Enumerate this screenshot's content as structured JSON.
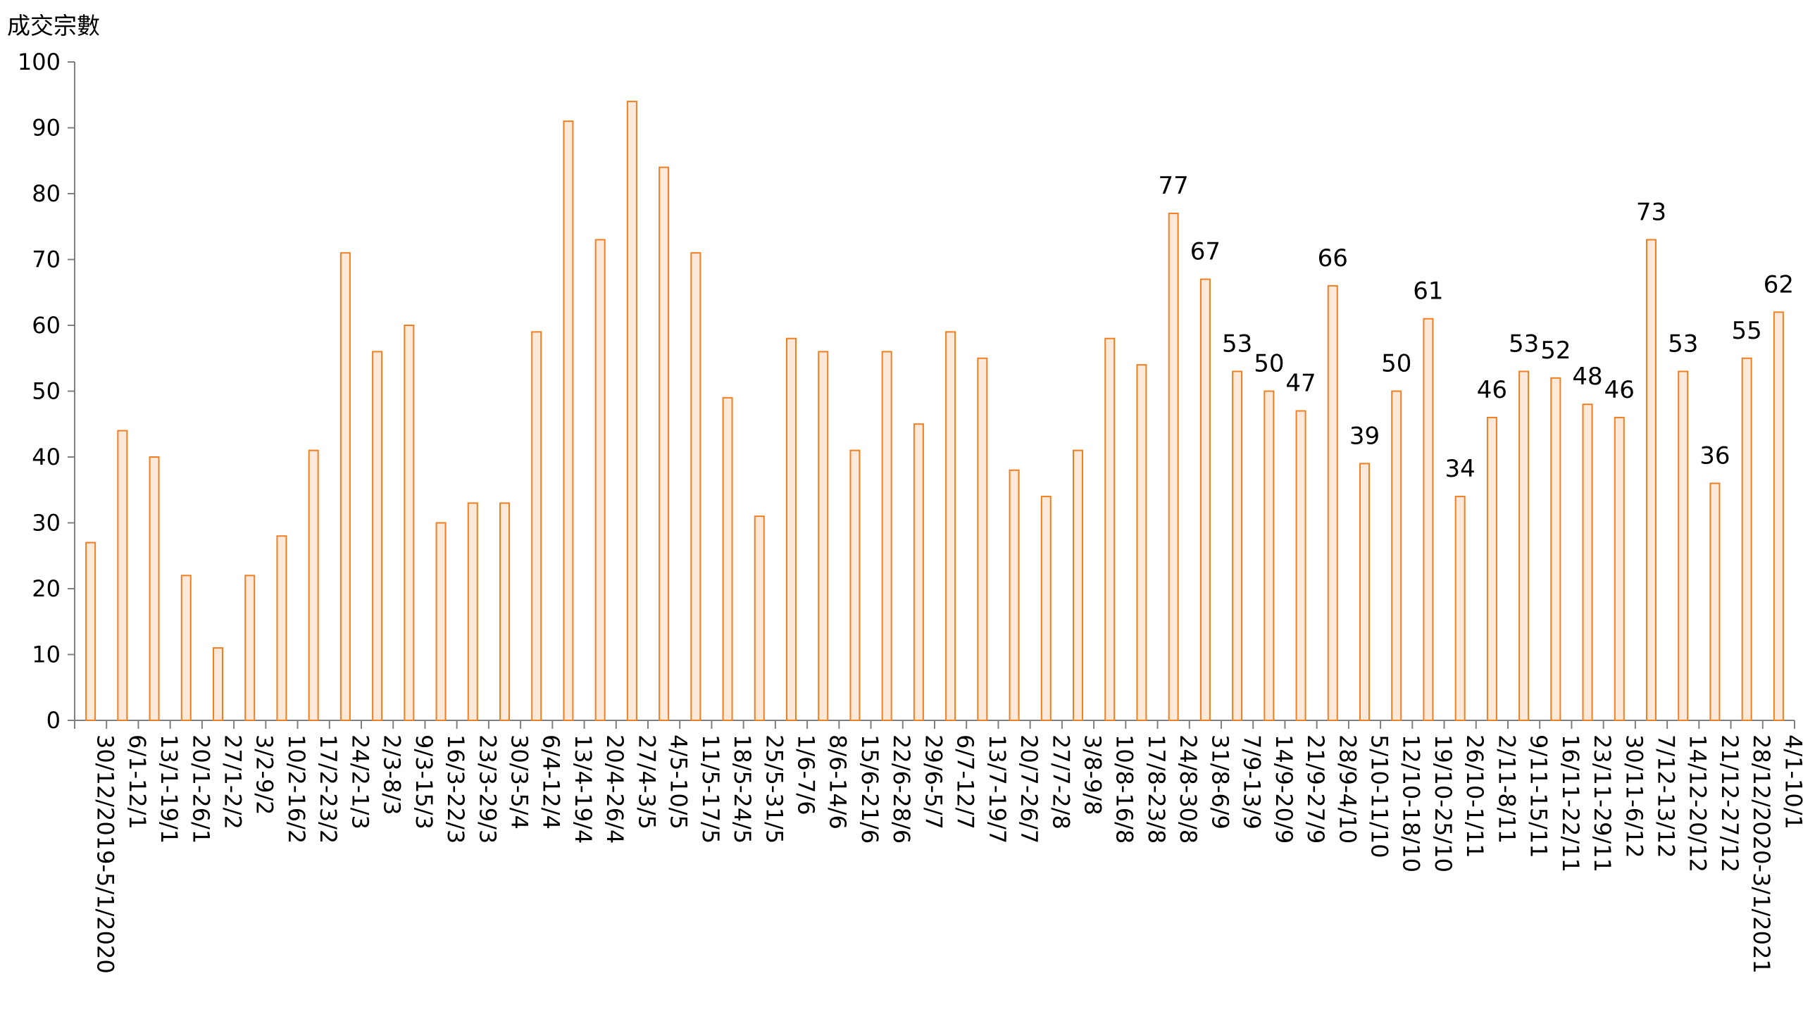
{
  "chart_data": {
    "type": "bar",
    "ylabel": "成交宗數",
    "xlabel": "",
    "title": "",
    "ylim": [
      0,
      100
    ],
    "yticks": [
      0,
      10,
      20,
      30,
      40,
      50,
      60,
      70,
      80,
      90,
      100
    ],
    "grid": false,
    "bar_fill": "#fde9d9",
    "bar_stroke": "#f07f22",
    "categories": [
      "30/12/2019-5/1/2020",
      "6/1-12/1",
      "13/1-19/1",
      "20/1-26/1",
      "27/1-2/2",
      "3/2-9/2",
      "10/2-16/2",
      "17/2-23/2",
      "24/2-1/3",
      "2/3-8/3",
      "9/3-15/3",
      "16/3-22/3",
      "23/3-29/3",
      "30/3-5/4",
      "6/4-12/4",
      "13/4-19/4",
      "20/4-26/4",
      "27/4-3/5",
      "4/5-10/5",
      "11/5-17/5",
      "18/5-24/5",
      "25/5-31/5",
      "1/6-7/6",
      "8/6-14/6",
      "15/6-21/6",
      "22/6-28/6",
      "29/6-5/7",
      "6/7-12/7",
      "13/7-19/7",
      "20/7-26/7",
      "27/7-2/8",
      "3/8-9/8",
      "10/8-16/8",
      "17/8-23/8",
      "24/8-30/8",
      "31/8-6/9",
      "7/9-13/9",
      "14/9-20/9",
      "21/9-27/9",
      "28/9-4/10",
      "5/10-11/10",
      "12/10-18/10",
      "19/10-25/10",
      "26/10-1/11",
      "2/11-8/11",
      "9/11-15/11",
      "16/11-22/11",
      "23/11-29/11",
      "30/11-6/12",
      "7/12-13/12",
      "14/12-20/12",
      "21/12-27/12",
      "28/12/2020-3/1/2021",
      "4/1-10/1"
    ],
    "values": [
      27,
      44,
      40,
      22,
      11,
      22,
      28,
      41,
      71,
      56,
      60,
      30,
      33,
      33,
      59,
      91,
      73,
      94,
      84,
      71,
      49,
      31,
      58,
      56,
      41,
      56,
      45,
      59,
      55,
      38,
      34,
      41,
      58,
      54,
      77,
      67,
      53,
      50,
      47,
      66,
      39,
      50,
      61,
      34,
      46,
      53,
      52,
      48,
      46,
      73,
      53,
      36,
      55,
      62
    ],
    "data_labels": [
      null,
      null,
      null,
      null,
      null,
      null,
      null,
      null,
      null,
      null,
      null,
      null,
      null,
      null,
      null,
      null,
      null,
      null,
      null,
      null,
      null,
      null,
      null,
      null,
      null,
      null,
      null,
      null,
      null,
      null,
      null,
      null,
      null,
      null,
      "77",
      "67",
      "53",
      "50",
      "47",
      "66",
      "39",
      "50",
      "61",
      "34",
      "46",
      "53",
      "52",
      "48",
      "46",
      "73",
      "53",
      "36",
      "55",
      "62"
    ]
  }
}
